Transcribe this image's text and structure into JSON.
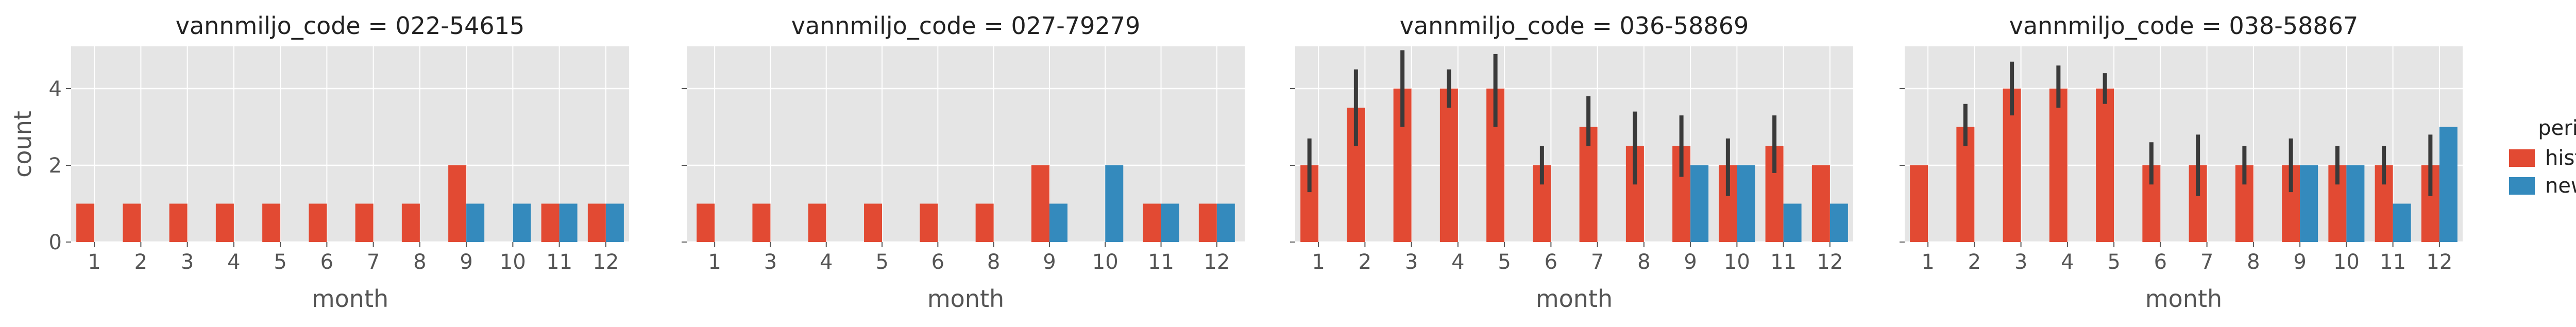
{
  "figure": {
    "ylabel": "count",
    "xlabel": "month",
    "legend": {
      "title": "period",
      "placement": "right",
      "entries": [
        {
          "label": "historic",
          "color": "#e24a33"
        },
        {
          "label": "new",
          "color": "#348abd"
        }
      ]
    },
    "y_ticks": [
      "0",
      "2",
      "4"
    ]
  },
  "chart_data": [
    {
      "type": "bar",
      "title": "vannmiljo_code = 022-54615",
      "xlabel": "month",
      "ylabel": "count",
      "categories": [
        "1",
        "2",
        "3",
        "4",
        "5",
        "6",
        "7",
        "8",
        "9",
        "10",
        "11",
        "12"
      ],
      "ylim": [
        0,
        5.1
      ],
      "grid": true,
      "series": [
        {
          "name": "historic",
          "color": "#e24a33",
          "values": [
            1,
            1,
            1,
            1,
            1,
            1,
            1,
            1,
            2,
            null,
            1,
            1
          ],
          "error_low": [
            null,
            null,
            null,
            null,
            null,
            null,
            null,
            null,
            null,
            null,
            null,
            null
          ],
          "error_high": [
            null,
            null,
            null,
            null,
            null,
            null,
            null,
            null,
            null,
            null,
            null,
            null
          ]
        },
        {
          "name": "new",
          "color": "#348abd",
          "values": [
            null,
            null,
            null,
            null,
            null,
            null,
            null,
            null,
            1,
            1,
            1,
            1
          ],
          "error_low": [
            null,
            null,
            null,
            null,
            null,
            null,
            null,
            null,
            null,
            null,
            null,
            null
          ],
          "error_high": [
            null,
            null,
            null,
            null,
            null,
            null,
            null,
            null,
            null,
            null,
            null,
            null
          ]
        }
      ]
    },
    {
      "type": "bar",
      "title": "vannmiljo_code = 027-79279",
      "xlabel": "month",
      "ylabel": "",
      "categories": [
        "1",
        "3",
        "4",
        "5",
        "6",
        "8",
        "9",
        "10",
        "11",
        "12"
      ],
      "ylim": [
        0,
        5.1
      ],
      "grid": true,
      "series": [
        {
          "name": "historic",
          "color": "#e24a33",
          "values": [
            1,
            1,
            1,
            1,
            1,
            1,
            2,
            null,
            1,
            1
          ],
          "error_low": [
            null,
            null,
            null,
            null,
            null,
            null,
            null,
            null,
            null,
            null
          ],
          "error_high": [
            null,
            null,
            null,
            null,
            null,
            null,
            null,
            null,
            null,
            null
          ]
        },
        {
          "name": "new",
          "color": "#348abd",
          "values": [
            null,
            null,
            null,
            null,
            null,
            null,
            1,
            2,
            1,
            1
          ],
          "error_low": [
            null,
            null,
            null,
            null,
            null,
            null,
            null,
            null,
            null,
            null
          ],
          "error_high": [
            null,
            null,
            null,
            null,
            null,
            null,
            null,
            null,
            null,
            null
          ]
        }
      ]
    },
    {
      "type": "bar",
      "title": "vannmiljo_code = 036-58869",
      "xlabel": "month",
      "ylabel": "",
      "categories": [
        "1",
        "2",
        "3",
        "4",
        "5",
        "6",
        "7",
        "8",
        "9",
        "10",
        "11",
        "12"
      ],
      "ylim": [
        0,
        5.1
      ],
      "grid": true,
      "series": [
        {
          "name": "historic",
          "color": "#e24a33",
          "values": [
            2,
            3.5,
            4,
            4,
            4,
            2,
            3,
            2.5,
            2.5,
            2,
            2.5,
            2
          ],
          "error_low": [
            1.3,
            2.5,
            3,
            3.5,
            3,
            1.5,
            2.5,
            1.5,
            1.7,
            1.2,
            1.8,
            null
          ],
          "error_high": [
            2.7,
            4.5,
            5,
            4.5,
            4.9,
            2.5,
            3.8,
            3.4,
            3.3,
            2.7,
            3.3,
            null
          ]
        },
        {
          "name": "new",
          "color": "#348abd",
          "values": [
            null,
            null,
            null,
            null,
            null,
            null,
            null,
            null,
            2,
            2,
            1,
            1
          ],
          "error_low": [
            null,
            null,
            null,
            null,
            null,
            null,
            null,
            null,
            null,
            null,
            null,
            null
          ],
          "error_high": [
            null,
            null,
            null,
            null,
            null,
            null,
            null,
            null,
            null,
            null,
            null,
            null
          ]
        }
      ]
    },
    {
      "type": "bar",
      "title": "vannmiljo_code = 038-58867",
      "xlabel": "month",
      "ylabel": "",
      "categories": [
        "1",
        "2",
        "3",
        "4",
        "5",
        "6",
        "7",
        "8",
        "9",
        "10",
        "11",
        "12"
      ],
      "ylim": [
        0,
        5.1
      ],
      "grid": true,
      "series": [
        {
          "name": "historic",
          "color": "#e24a33",
          "values": [
            2,
            3,
            4,
            4,
            4,
            2,
            2,
            2,
            2,
            2,
            2,
            2
          ],
          "error_low": [
            null,
            2.5,
            3.3,
            3.5,
            3.6,
            1.5,
            1.2,
            1.5,
            1.3,
            1.5,
            1.5,
            1.2
          ],
          "error_high": [
            null,
            3.6,
            4.7,
            4.6,
            4.4,
            2.6,
            2.8,
            2.5,
            2.7,
            2.5,
            2.5,
            2.8
          ]
        },
        {
          "name": "new",
          "color": "#348abd",
          "values": [
            null,
            null,
            null,
            null,
            null,
            null,
            null,
            null,
            2,
            2,
            1,
            3
          ],
          "error_low": [
            null,
            null,
            null,
            null,
            null,
            null,
            null,
            null,
            null,
            null,
            null,
            null
          ],
          "error_high": [
            null,
            null,
            null,
            null,
            null,
            null,
            null,
            null,
            null,
            null,
            null,
            null
          ]
        }
      ]
    }
  ]
}
